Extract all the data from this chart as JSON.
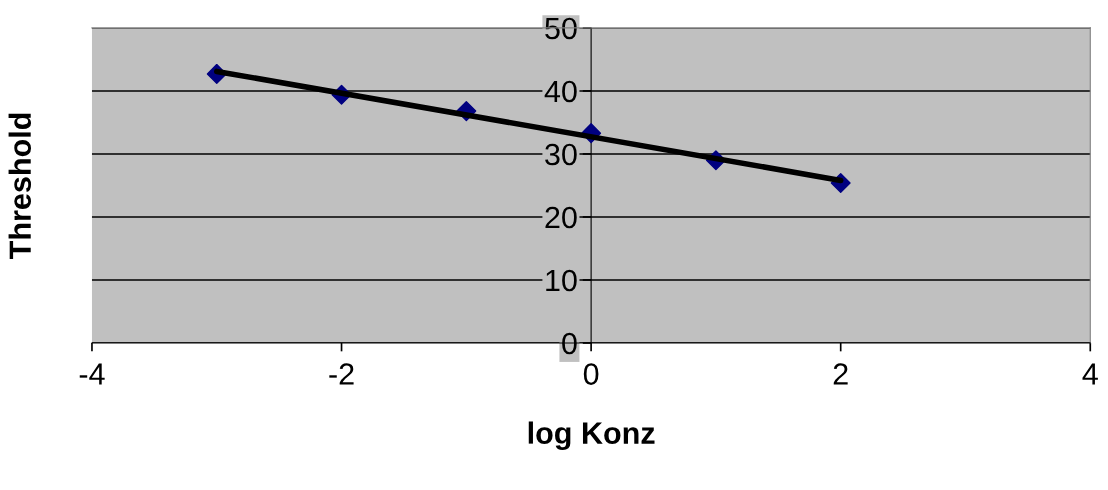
{
  "chart_data": {
    "type": "scatter",
    "xlabel": "log Konz",
    "ylabel": "Threshold",
    "xlim": [
      -4,
      4
    ],
    "xticks": [
      -4,
      -2,
      0,
      2,
      4
    ],
    "ylim": [
      0,
      50
    ],
    "yticks": [
      0,
      10,
      20,
      30,
      40,
      50
    ],
    "grid": "y",
    "marker": "diamond",
    "series": [
      {
        "color": "#000080",
        "x": [
          -3,
          -2,
          -1,
          0,
          1,
          2
        ],
        "values": [
          42.7,
          39.4,
          36.8,
          33.3,
          29.0,
          25.4
        ]
      },
      {
        "type": "line",
        "marker": "none",
        "color": "#000000",
        "x": [
          -3,
          2
        ],
        "values": [
          43.1,
          25.8
        ]
      }
    ]
  }
}
